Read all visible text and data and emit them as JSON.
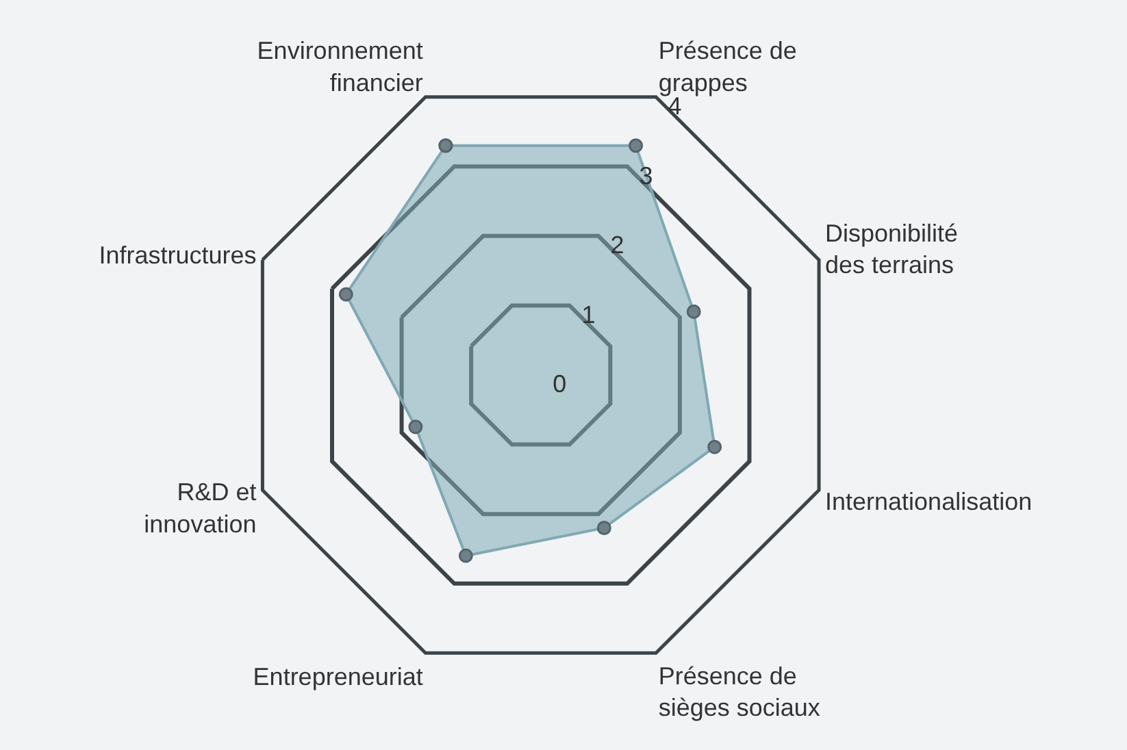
{
  "chart_data": {
    "type": "radar",
    "categories": [
      "Environnement\nfinancier",
      "Présence de\ngrappes",
      "Disponibilité\ndes terrains",
      "Internationalisation",
      "Présence de\nsièges sociaux",
      "Entrepreneuriat",
      "R&D et\ninnovation",
      "Infrastructures"
    ],
    "series": [
      {
        "color": "#7fa9b4",
        "values": [
          3.3,
          3.3,
          2.2,
          2.5,
          2.2,
          2.6,
          1.8,
          2.8
        ]
      }
    ],
    "ylim": [
      0,
      4
    ],
    "yticks": [
      0,
      1,
      2,
      3,
      4
    ],
    "grid": true,
    "marker": "circle"
  }
}
